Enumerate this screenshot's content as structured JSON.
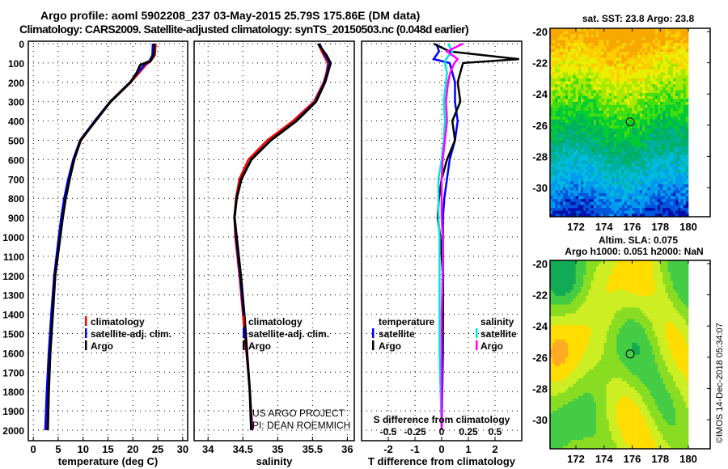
{
  "title_line1": "Argo profile: aoml 5902208_237 03-May-2015 25.79S 175.86E (DM data)",
  "title_line2": "Climatology: CARS2009. Satellite-adjusted climatology: synTS_20150503.nc (0.048d earlier)",
  "credit": "©IMOS 14-Dec-2018 05:34:07",
  "project_line1": "US ARGO PROJECT",
  "project_line2": "PI: DEAN ROEMMICH",
  "colors": {
    "climatology": "#ff0000",
    "satellite": "#0000ff",
    "argo": "#000000",
    "sal_satellite": "#00e5e5",
    "sal_argo": "#ff00ff"
  },
  "chart_data": [
    {
      "type": "line",
      "id": "temperature",
      "xlabel": "temperature (deg C)",
      "ylabel": "",
      "xlim": [
        -1,
        31
      ],
      "ylim": [
        2060,
        0
      ],
      "xticks": [
        "0",
        "5",
        "10",
        "15",
        "20",
        "25",
        "30"
      ],
      "xtick_values": [
        0,
        5,
        10,
        15,
        20,
        25,
        30
      ],
      "yticks": [
        "0",
        "100",
        "200",
        "300",
        "400",
        "500",
        "600",
        "700",
        "800",
        "900",
        "1000",
        "1100",
        "1200",
        "1300",
        "1400",
        "1500",
        "1600",
        "1700",
        "1800",
        "1900",
        "2000"
      ],
      "legend": [
        "climatology",
        "satellite-adj. clim.",
        "Argo"
      ],
      "depth": [
        0,
        60,
        90,
        110,
        150,
        200,
        300,
        400,
        500,
        600,
        700,
        800,
        900,
        1000,
        1200,
        1400,
        1600,
        1800,
        2000
      ],
      "series": [
        {
          "name": "climatology",
          "values": [
            24.6,
            24.4,
            23.6,
            22.6,
            21.3,
            19.6,
            15.6,
            12.4,
            9.6,
            8.1,
            7.1,
            6.3,
            5.7,
            5.2,
            4.3,
            3.7,
            3.2,
            2.8,
            2.5
          ]
        },
        {
          "name": "satellite-adj. clim.",
          "values": [
            24.0,
            23.9,
            23.3,
            22.3,
            21.0,
            19.4,
            15.4,
            12.3,
            9.4,
            8.0,
            7.0,
            6.2,
            5.6,
            5.1,
            4.2,
            3.6,
            3.1,
            2.7,
            2.4
          ]
        },
        {
          "name": "Argo",
          "values": [
            24.3,
            24.2,
            23.5,
            21.5,
            20.8,
            19.5,
            15.5,
            12.5,
            9.5,
            8.2,
            7.3,
            6.5,
            5.9,
            5.4,
            4.4,
            3.9,
            3.4,
            3.1,
            2.9
          ]
        }
      ]
    },
    {
      "type": "line",
      "id": "salinity",
      "xlabel": "salinity",
      "xlim": [
        33.8,
        36.1
      ],
      "xticks": [
        "34",
        "34.5",
        "35",
        "35.5",
        "36"
      ],
      "xtick_values": [
        34,
        34.5,
        35,
        35.5,
        36
      ],
      "legend": [
        "climatology",
        "satellite-adj. clim.",
        "Argo"
      ],
      "depth": [
        0,
        60,
        100,
        150,
        200,
        300,
        400,
        500,
        600,
        700,
        800,
        900,
        1000,
        1200,
        1400,
        1600,
        1800,
        2000
      ],
      "series": [
        {
          "name": "climatology",
          "values": [
            35.58,
            35.66,
            35.72,
            35.7,
            35.66,
            35.52,
            35.22,
            34.85,
            34.58,
            34.45,
            34.4,
            34.38,
            34.39,
            34.45,
            34.5,
            34.55,
            34.6,
            34.64
          ]
        },
        {
          "name": "satellite-adj. clim.",
          "values": [
            35.6,
            35.68,
            35.74,
            35.71,
            35.67,
            35.54,
            35.26,
            34.9,
            34.62,
            34.48,
            34.41,
            34.38,
            34.4,
            34.46,
            34.51,
            34.56,
            34.6,
            34.63
          ]
        },
        {
          "name": "Argo",
          "values": [
            35.58,
            35.7,
            35.76,
            35.72,
            35.68,
            35.55,
            35.27,
            34.9,
            34.62,
            34.48,
            34.41,
            34.38,
            34.41,
            34.47,
            34.52,
            34.56,
            34.6,
            34.62
          ]
        }
      ]
    },
    {
      "type": "line",
      "id": "difference",
      "xlabel": "T difference from climatology",
      "x2label": "S difference from climatology",
      "xlim": [
        -3,
        3
      ],
      "xticks": [
        "-2",
        "-1",
        "0",
        "1",
        "2"
      ],
      "xtick_values": [
        -2,
        -1,
        0,
        1,
        2
      ],
      "x2ticks": [
        "-0.5",
        "-0.25",
        "0",
        "0.25",
        "0.5"
      ],
      "x2tick_values": [
        -0.5,
        -0.25,
        0,
        0.25,
        0.5
      ],
      "legend_temperature_title": "temperature",
      "legend_salinity_title": "salinity",
      "legend": [
        "satellite",
        "Argo"
      ],
      "depth": [
        0,
        40,
        80,
        100,
        150,
        200,
        300,
        400,
        500,
        600,
        700,
        800,
        900,
        1000,
        1200,
        1400,
        1600,
        1800,
        2000
      ],
      "series": [
        {
          "name": "T satellite",
          "values": [
            -0.2,
            -0.1,
            -0.3,
            0.3,
            0.4,
            0.5,
            0.5,
            0.6,
            0.5,
            0.3,
            0.2,
            0.1,
            0.05,
            0.05,
            0.05,
            0.05,
            0.05,
            0.02,
            0.0
          ]
        },
        {
          "name": "T Argo",
          "values": [
            -0.3,
            0.3,
            2.9,
            0.8,
            0.7,
            0.6,
            0.7,
            0.4,
            0.5,
            0.2,
            0.0,
            -0.1,
            -0.15,
            -0.05,
            0.05,
            0.05,
            0.02,
            0.0,
            0.0
          ]
        },
        {
          "name": "S satellite",
          "values": [
            0.06,
            0.1,
            0.04,
            0.03,
            0.05,
            0.04,
            0.02,
            0.03,
            0.02,
            0.0,
            -0.03,
            -0.03,
            -0.03,
            -0.02,
            -0.02,
            -0.02,
            -0.02,
            -0.01,
            0.0
          ]
        },
        {
          "name": "S Argo",
          "values": [
            0.2,
            0.05,
            0.15,
            0.12,
            0.08,
            0.06,
            0.04,
            0.05,
            0.03,
            0.01,
            0.0,
            0.0,
            0.0,
            0.01,
            0.01,
            0.0,
            0.0,
            0.0,
            0.0
          ]
        }
      ]
    },
    {
      "type": "heatmap",
      "id": "sst_map",
      "title": "sat. SST: 23.8 Argo: 23.8",
      "xticks": [
        "172",
        "174",
        "176",
        "178",
        "180"
      ],
      "xtick_values": [
        172,
        174,
        176,
        178,
        180
      ],
      "yticks": [
        "-20",
        "-22",
        "-24",
        "-26",
        "-28",
        "-30"
      ],
      "ytick_values": [
        -20,
        -22,
        -24,
        -26,
        -28,
        -30
      ],
      "xlim": [
        170.2,
        181.6
      ],
      "ylim": [
        -31.7,
        -19.9
      ],
      "marker": {
        "lon": 175.86,
        "lat": -25.79
      }
    },
    {
      "type": "heatmap",
      "id": "sla_map",
      "title": "Altim. SLA: 0.075",
      "subtitle": "Argo h1000: 0.051 h2000: NaN",
      "xticks": [
        "172",
        "174",
        "176",
        "178",
        "180"
      ],
      "xtick_values": [
        172,
        174,
        176,
        178,
        180
      ],
      "yticks": [
        "-20",
        "-22",
        "-24",
        "-26",
        "-28",
        "-30"
      ],
      "ytick_values": [
        -20,
        -22,
        -24,
        -26,
        -28,
        -30
      ],
      "xlim": [
        170.2,
        181.6
      ],
      "ylim": [
        -31.7,
        -19.9
      ],
      "marker": {
        "lon": 175.86,
        "lat": -25.79
      }
    }
  ]
}
